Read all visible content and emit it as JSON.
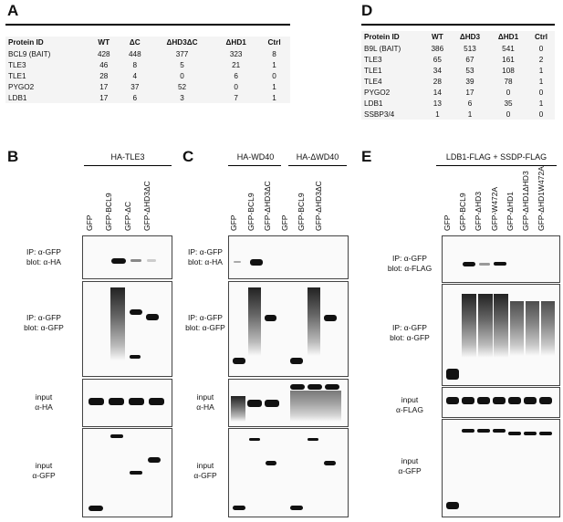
{
  "panels": {
    "A": "A",
    "B": "B",
    "C": "C",
    "D": "D",
    "E": "E"
  },
  "tableA": {
    "headers": [
      "Protein ID",
      "WT",
      "ΔC",
      "ΔHD3ΔC",
      "ΔHD1",
      "Ctrl"
    ],
    "rows": [
      [
        "BCL9 (BAIT)",
        "428",
        "448",
        "377",
        "323",
        "8"
      ],
      [
        "TLE3",
        "46",
        "8",
        "5",
        "21",
        "1"
      ],
      [
        "TLE1",
        "28",
        "4",
        "0",
        "6",
        "0"
      ],
      [
        "PYGO2",
        "17",
        "37",
        "52",
        "0",
        "1"
      ],
      [
        "LDB1",
        "17",
        "6",
        "3",
        "7",
        "1"
      ]
    ]
  },
  "tableD": {
    "headers": [
      "Protein ID",
      "WT",
      "ΔHD3",
      "ΔHD1",
      "Ctrl"
    ],
    "rows": [
      [
        "B9L (BAIT)",
        "386",
        "513",
        "541",
        "0"
      ],
      [
        "TLE3",
        "65",
        "67",
        "161",
        "2"
      ],
      [
        "TLE1",
        "34",
        "53",
        "108",
        "1"
      ],
      [
        "TLE4",
        "28",
        "39",
        "78",
        "1"
      ],
      [
        "PYGO2",
        "14",
        "17",
        "0",
        "0"
      ],
      [
        "LDB1",
        "13",
        "6",
        "35",
        "1"
      ],
      [
        "SSBP3/4",
        "1",
        "1",
        "0",
        "0"
      ]
    ]
  },
  "panelB": {
    "header": "HA-TLE3",
    "lanes": [
      "GFP",
      "GFP-BCL9",
      "GFP-ΔC",
      "GFP-ΔHD3ΔC"
    ],
    "blots": [
      "IP: α-GFP\nblot: α-HA",
      "IP: α-GFP\nblot: α-GFP",
      "input\nα-HA",
      "input\nα-GFP"
    ]
  },
  "panelC": {
    "header1": "HA-WD40",
    "header2": "HA-ΔWD40",
    "lanes": [
      "GFP",
      "GFP-BCL9",
      "GFP-ΔHD3ΔC",
      "GFP",
      "GFP-BCL9",
      "GFP-ΔHD3ΔC"
    ],
    "blots": [
      "IP: α-GFP\nblot: α-HA",
      "IP: α-GFP\nblot: α-GFP",
      "input\nα-HA",
      "input\nα-GFP"
    ]
  },
  "panelE": {
    "header": "LDB1-FLAG + SSDP-FLAG",
    "lanes": [
      "GFP",
      "GFP-BCL9",
      "GFP-ΔHD3",
      "GFP-W472A",
      "GFP-ΔHD1",
      "GFP-ΔHD1ΔHD3",
      "GFP-ΔHD1W472A"
    ],
    "blots": [
      "IP: α-GFP\nblot: α-FLAG",
      "IP: α-GFP\nblot: α-GFP",
      "input\nα-FLAG",
      "input\nα-GFP"
    ]
  }
}
